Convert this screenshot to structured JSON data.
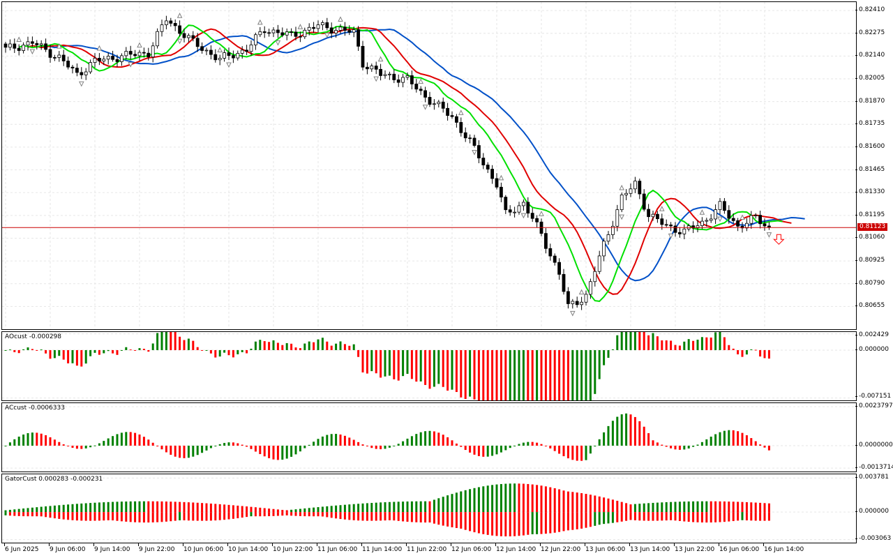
{
  "chart_data": {
    "type": "candlestick",
    "main": {
      "name": "price",
      "ylim": [
        0.8052,
        0.8246
      ],
      "y_ticks": [
        "0.82410",
        "0.82275",
        "0.82140",
        "0.82005",
        "0.81870",
        "0.81735",
        "0.81600",
        "0.81465",
        "0.81330",
        "0.81195",
        "0.81060",
        "0.80925",
        "0.80790",
        "0.80655"
      ],
      "y_tick_values": [
        0.8241,
        0.82275,
        0.8214,
        0.82005,
        0.8187,
        0.81735,
        0.816,
        0.81465,
        0.8133,
        0.81195,
        0.8106,
        0.80925,
        0.8079,
        0.80655
      ],
      "current_price": 0.81123,
      "current_price_label": "0.81123",
      "sell_signal_arrow": "down-arrow-outline",
      "ma_colors": {
        "fast": "#00e000",
        "mid": "#e00000",
        "slow": "#0050c8"
      },
      "fractal_color": "#808080"
    },
    "x_ticks": [
      "6 Jun 2025",
      "9 Jun 06:00",
      "9 Jun 14:00",
      "9 Jun 22:00",
      "10 Jun 06:00",
      "10 Jun 14:00",
      "10 Jun 22:00",
      "11 Jun 06:00",
      "11 Jun 14:00",
      "11 Jun 22:00",
      "12 Jun 06:00",
      "12 Jun 14:00",
      "12 Jun 22:00",
      "13 Jun 06:00",
      "13 Jun 14:00",
      "13 Jun 22:00",
      "16 Jun 06:00",
      "16 Jun 14:00"
    ],
    "panels": [
      {
        "name": "AOcust",
        "label": "AOcust -0.000298",
        "y_ticks": [
          "0.002429",
          "0.000000",
          "-0.007151"
        ],
        "y_tick_values": [
          0.002429,
          0,
          -0.007151
        ],
        "ylim": [
          -0.0075,
          0.0027
        ],
        "up_color": "#008000",
        "down_color": "#ff0000"
      },
      {
        "name": "ACcust",
        "label": "ACcust -0.0006333",
        "y_ticks": [
          "0.0023797",
          "0.0000000",
          "-0.0013714"
        ],
        "y_tick_values": [
          0.0023797,
          0,
          -0.0013714
        ],
        "ylim": [
          -0.00158,
          0.0026
        ],
        "up_color": "#008000",
        "down_color": "#ff0000"
      },
      {
        "name": "GatorCust",
        "label": "GatorCust 0.000283 -0.000231",
        "y_ticks": [
          "0.003781",
          "0.000000",
          "-0.003063"
        ],
        "y_tick_values": [
          0.003781,
          0,
          -0.003063
        ],
        "ylim": [
          -0.0034,
          0.0042
        ],
        "up_color": "#008000",
        "down_color": "#ff0000"
      }
    ]
  }
}
